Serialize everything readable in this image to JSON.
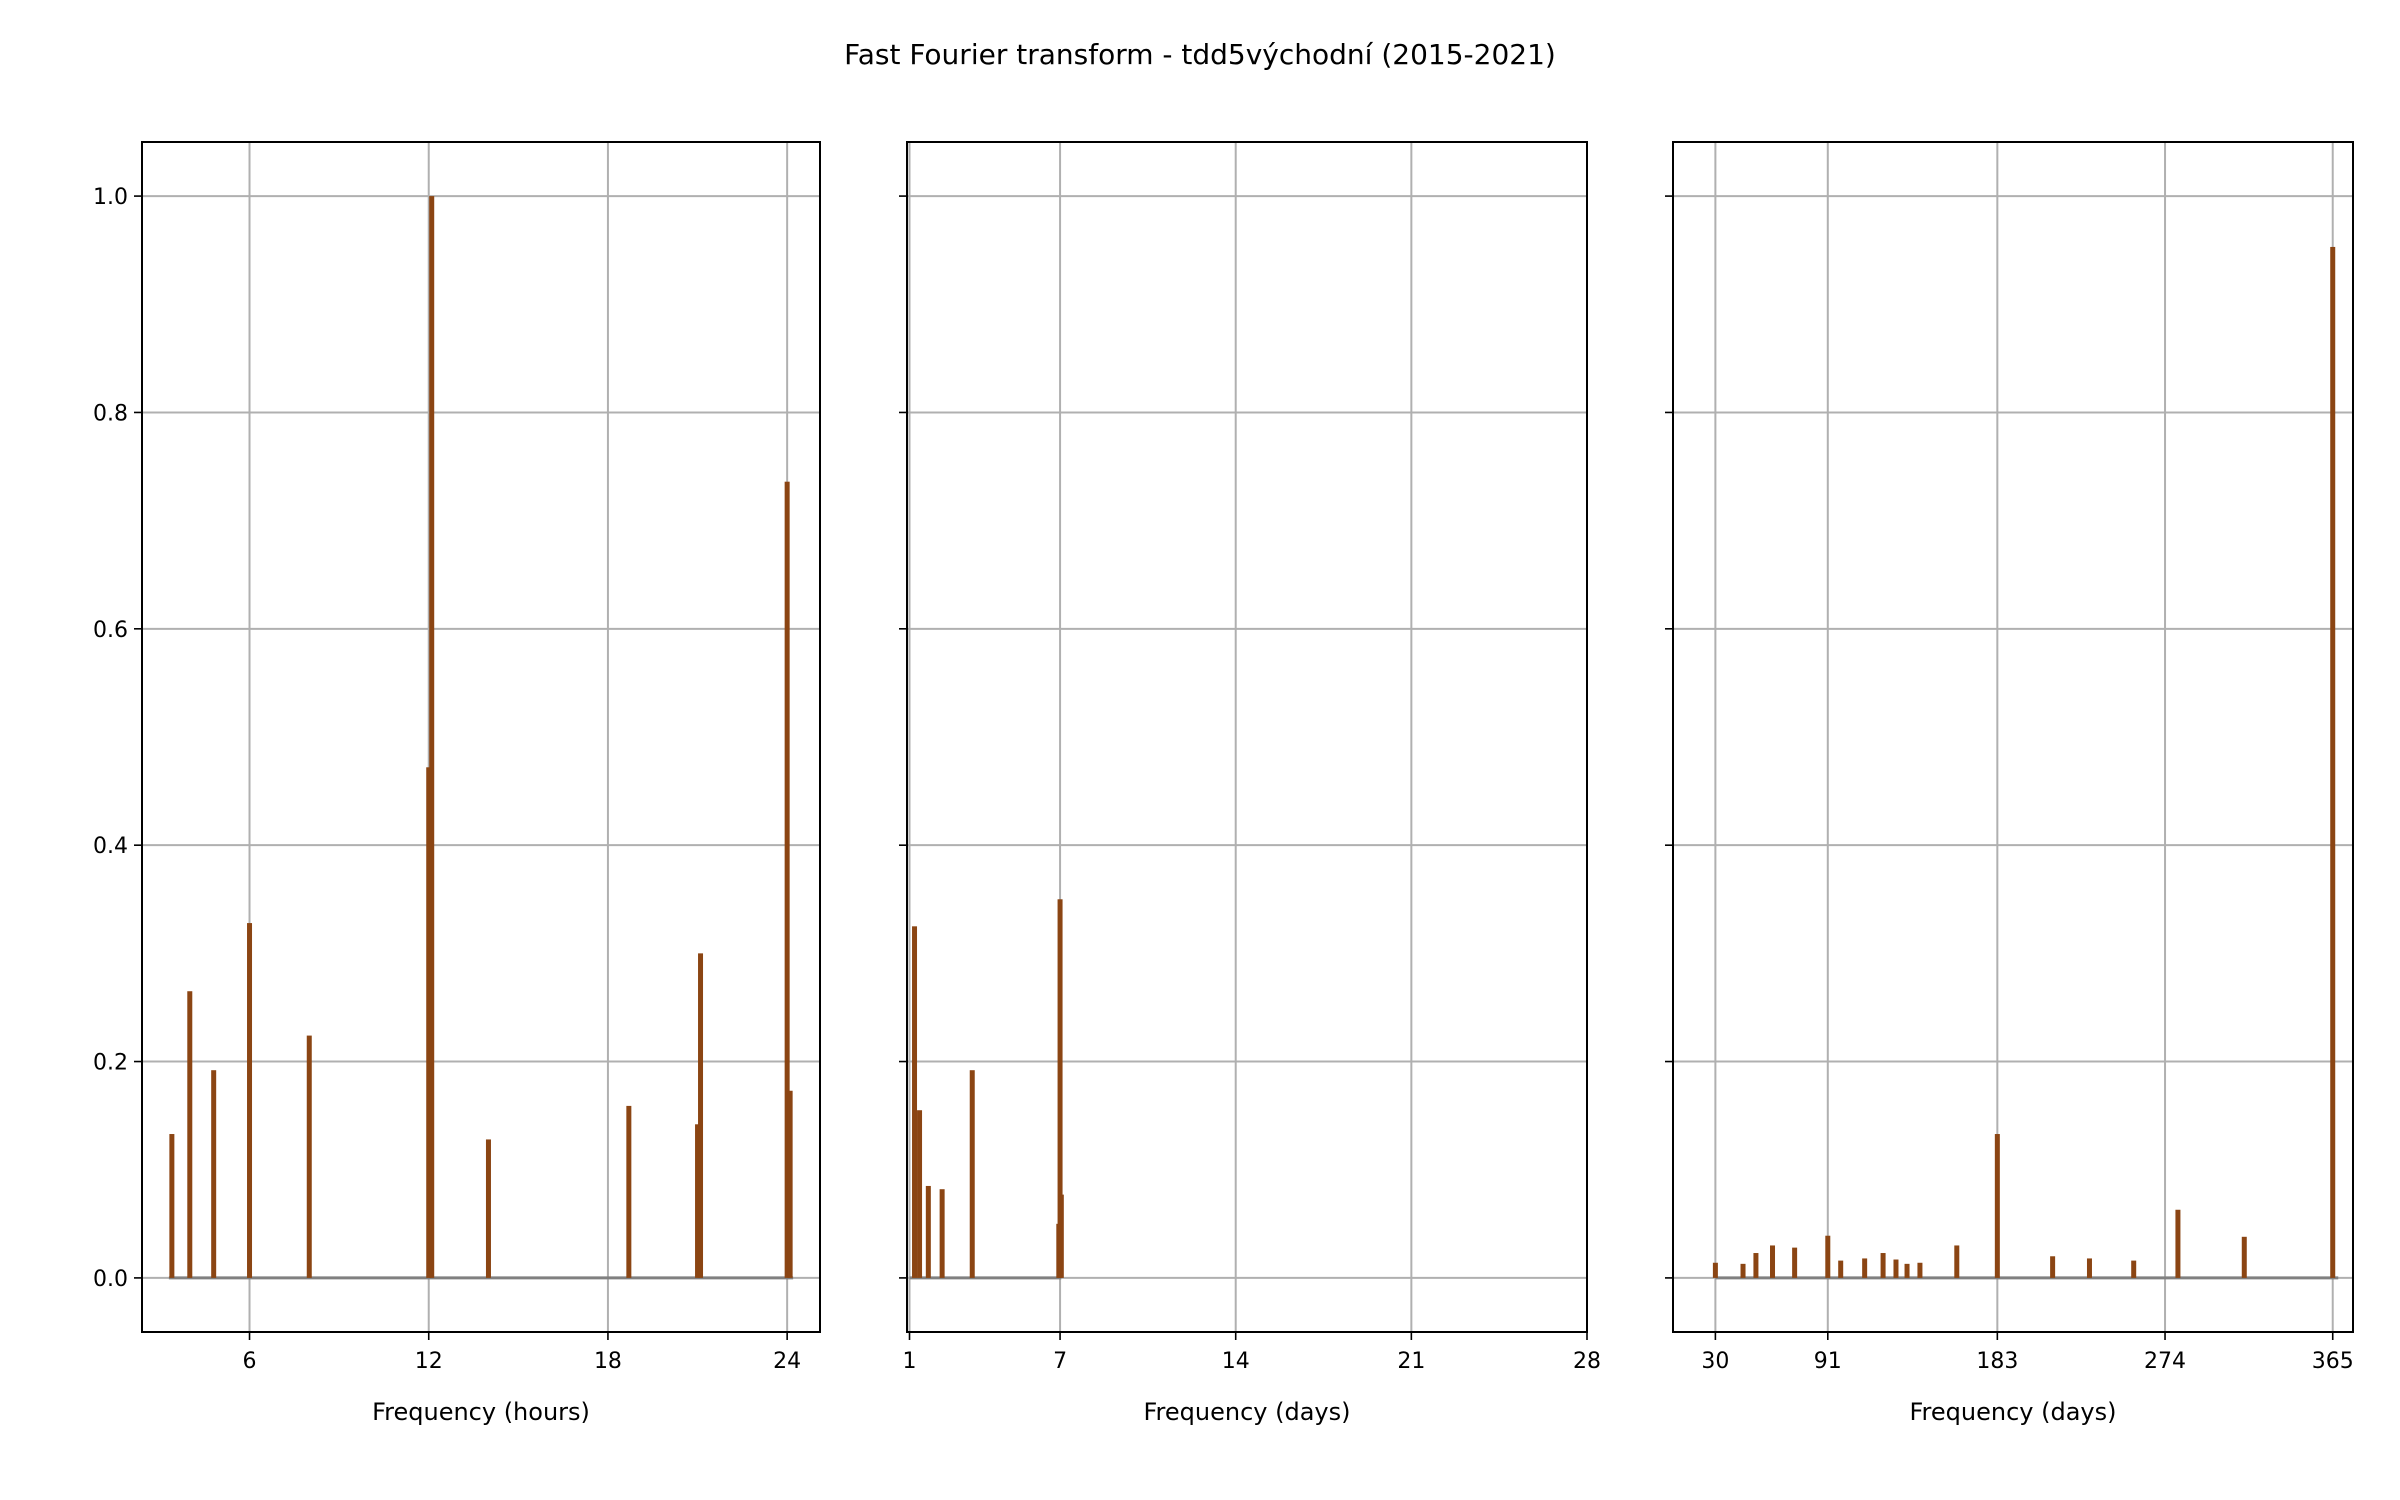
{
  "chart_data": {
    "title": "Fast Fourier transform - tdd5východní (2015-2021)",
    "type": "bar",
    "colors": {
      "bar": "#8b4513",
      "baseline": "#808080",
      "grid": "#b0b0b0",
      "frame": "#000000"
    },
    "ylim": [
      -0.05,
      1.05
    ],
    "yticks": [
      0.0,
      0.2,
      0.4,
      0.6,
      0.8,
      1.0
    ],
    "ytick_labels": [
      "0.0",
      "0.2",
      "0.4",
      "0.6",
      "0.8",
      "1.0"
    ],
    "panels": [
      {
        "xlabel": "Frequency (hours)",
        "xlim": [
          2.4,
          25.1
        ],
        "xticks": [
          6,
          12,
          18,
          24
        ],
        "xtick_labels": [
          "6",
          "12",
          "18",
          "24"
        ],
        "baseline": [
          3.3,
          24.2
        ],
        "x": [
          3.4,
          4.0,
          4.8,
          6.0,
          8.0,
          12.0,
          12.1,
          14.0,
          18.7,
          21.0,
          21.1,
          24.0,
          24.1
        ],
        "values": [
          0.133,
          0.265,
          0.192,
          0.328,
          0.224,
          0.472,
          1.0,
          0.128,
          0.159,
          0.142,
          0.3,
          0.736,
          0.173
        ]
      },
      {
        "xlabel": "Frequency (days)",
        "xlim": [
          0.9,
          28.0
        ],
        "xticks": [
          1,
          7,
          14,
          21,
          28
        ],
        "xtick_labels": [
          "1",
          "7",
          "14",
          "21",
          "28"
        ],
        "baseline": [
          1.0,
          7.05
        ],
        "x": [
          1.2,
          1.4,
          1.75,
          2.3,
          3.5,
          6.95,
          7.0,
          7.05
        ],
        "values": [
          0.325,
          0.155,
          0.085,
          0.082,
          0.192,
          0.05,
          0.35,
          0.077
        ]
      },
      {
        "xlabel": "Frequency (days)",
        "xlim": [
          7,
          376
        ],
        "xticks": [
          30,
          91,
          183,
          274,
          365
        ],
        "xtick_labels": [
          "30",
          "91",
          "183",
          "274",
          "365"
        ],
        "baseline": [
          30,
          368
        ],
        "x": [
          30,
          45,
          52,
          61,
          73,
          91,
          98,
          111,
          121,
          128,
          134,
          141,
          161,
          183,
          213,
          233,
          257,
          281,
          317,
          365
        ],
        "values": [
          0.014,
          0.013,
          0.023,
          0.03,
          0.028,
          0.039,
          0.016,
          0.018,
          0.023,
          0.017,
          0.013,
          0.014,
          0.03,
          0.133,
          0.02,
          0.018,
          0.016,
          0.063,
          0.038,
          0.953
        ]
      }
    ]
  }
}
